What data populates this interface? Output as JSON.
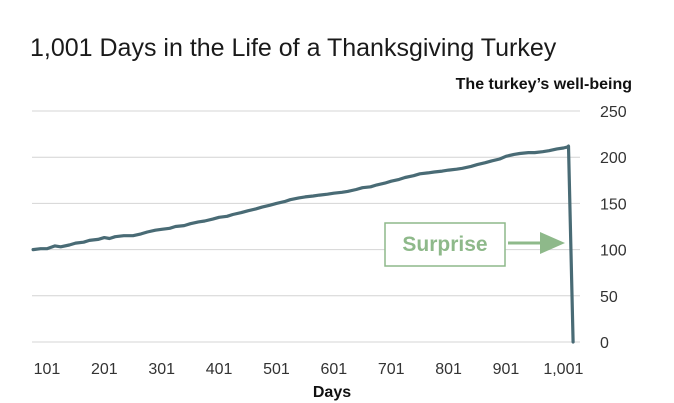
{
  "chart_data": {
    "type": "line",
    "title": "1,001 Days in the Life of a Thanksgiving Turkey",
    "ylabel": "The turkey’s well-being",
    "xlabel": "Days",
    "xlim": [
      75,
      1030
    ],
    "ylim": [
      0,
      250
    ],
    "xticks": [
      101,
      201,
      301,
      401,
      501,
      601,
      701,
      801,
      901,
      1001
    ],
    "xtick_labels": [
      "101",
      "201",
      "301",
      "401",
      "501",
      "601",
      "701",
      "801",
      "901",
      "1,001"
    ],
    "yticks": [
      0,
      50,
      100,
      150,
      200,
      250
    ],
    "ytick_labels": [
      "0",
      "50",
      "100",
      "150",
      "200",
      "250"
    ],
    "grid": true,
    "y_axis_position": "right",
    "series": [
      {
        "color": "#496b75",
        "x": [
          77,
          90,
          101,
          115,
          125,
          140,
          151,
          165,
          175,
          190,
          201,
          210,
          220,
          235,
          251,
          265,
          276,
          290,
          301,
          315,
          325,
          340,
          351,
          365,
          376,
          390,
          401,
          415,
          425,
          440,
          451,
          465,
          476,
          490,
          501,
          515,
          525,
          540,
          551,
          565,
          576,
          590,
          601,
          615,
          625,
          640,
          651,
          665,
          676,
          690,
          701,
          715,
          725,
          740,
          751,
          765,
          776,
          790,
          801,
          815,
          825,
          840,
          851,
          865,
          876,
          890,
          901,
          915,
          925,
          940,
          951,
          965,
          976,
          990,
          1001,
          1008,
          1010,
          1018
        ],
        "y": [
          100,
          101,
          101,
          104,
          103,
          105,
          107,
          108,
          110,
          111,
          113,
          112,
          114,
          115,
          115,
          117,
          119,
          121,
          122,
          123,
          125,
          126,
          128,
          130,
          131,
          133,
          135,
          136,
          138,
          140,
          142,
          144,
          146,
          148,
          150,
          152,
          154,
          156,
          157,
          158,
          159,
          160,
          161,
          162,
          163,
          165,
          167,
          168,
          170,
          172,
          174,
          176,
          178,
          180,
          182,
          183,
          184,
          185,
          186,
          187,
          188,
          190,
          192,
          194,
          196,
          198,
          201,
          203,
          204,
          205,
          205,
          206,
          207,
          209,
          210,
          211,
          212,
          0
        ]
      }
    ],
    "annotations": [
      {
        "text": "Surprise",
        "x": 1001,
        "y": 110,
        "arrow": "right"
      }
    ]
  }
}
